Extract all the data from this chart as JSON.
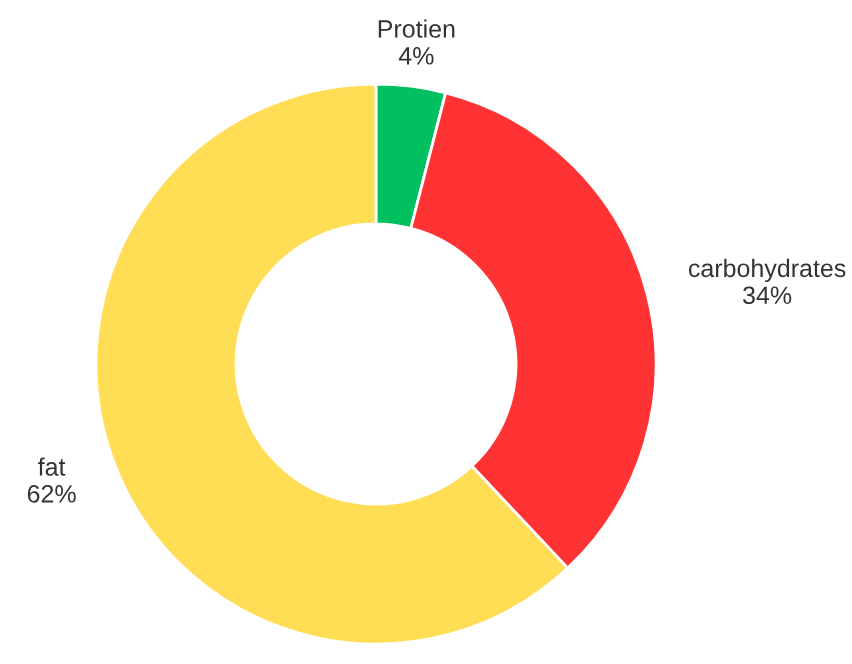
{
  "chart_data": {
    "type": "donut",
    "categories": [
      "Protien",
      "carbohydrates",
      "fat"
    ],
    "values": [
      4,
      34,
      62
    ],
    "value_labels": [
      "4%",
      "34%",
      "62%"
    ],
    "colors": [
      "#00c060",
      "#ff3333",
      "#ffdd55"
    ]
  }
}
